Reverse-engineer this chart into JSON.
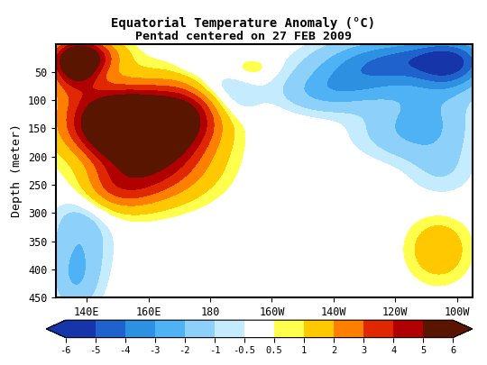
{
  "title": "Equatorial Temperature Anomaly (°C)",
  "subtitle": "Pentad centered on 27 FEB 2009",
  "xlabel_ticks": [
    "140E",
    "160E",
    "180",
    "160W",
    "140W",
    "120W",
    "100W"
  ],
  "xlabel_vals": [
    140,
    160,
    180,
    200,
    220,
    240,
    260
  ],
  "ylabel": "Depth (meter)",
  "ylim": [
    0,
    450
  ],
  "yticks": [
    50,
    100,
    150,
    200,
    250,
    300,
    350,
    400,
    450
  ],
  "xlim": [
    130,
    265
  ],
  "colorbar_levels": [
    -6,
    -5,
    -4,
    -3,
    -2,
    -1,
    -0.5,
    0.5,
    1,
    2,
    3,
    4,
    5,
    6
  ],
  "colorbar_colors": [
    "#1535a8",
    "#1f62cc",
    "#2e90e0",
    "#4eb2f4",
    "#8dd0fa",
    "#c5ebff",
    "#ffffff",
    "#ffff4d",
    "#ffc800",
    "#ff8000",
    "#e02800",
    "#b00000",
    "#5a1500"
  ],
  "background_color": "#ffffff"
}
